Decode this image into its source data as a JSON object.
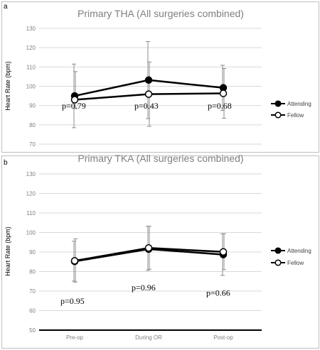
{
  "chart_data": [
    {
      "type": "line",
      "panel": "a",
      "title": "Primary THA (All surgeries combined)",
      "ylabel": "Heart Rate (bpm)",
      "xlabel": "",
      "categories": [
        "Pre-op",
        "During OR",
        "Post-op"
      ],
      "show_x_tick_labels": false,
      "ylim": [
        70,
        130
      ],
      "yticks": [
        70,
        80,
        90,
        100,
        110,
        120,
        130
      ],
      "grid": true,
      "legend_position": "right",
      "series": [
        {
          "name": "Attending",
          "marker": "filled",
          "values": [
            95,
            103.2,
            99.2
          ],
          "err_low": [
            78.5,
            83.2,
            87.5
          ],
          "err_high": [
            111.5,
            123.2,
            110.9
          ]
        },
        {
          "name": "Fellow",
          "marker": "open",
          "values": [
            93,
            95.9,
            96.3
          ],
          "err_low": [
            88.4,
            79.2,
            83.4
          ],
          "err_high": [
            107.6,
            112.6,
            109.2
          ]
        }
      ],
      "annotations": [
        {
          "text": "p=0.79",
          "category": 0,
          "y": 88.4
        },
        {
          "text": "p=0.43",
          "category": 1,
          "y": 88.4
        },
        {
          "text": "p=0.68",
          "category": 2,
          "y": 88.4
        }
      ]
    },
    {
      "type": "line",
      "panel": "b",
      "title": "Primary TKA (All surgeries combined)",
      "ylabel": "Heart Rate (bpm)",
      "xlabel": "",
      "categories": [
        "Pre-op",
        "During OR",
        "Post-op"
      ],
      "show_x_tick_labels": true,
      "ylim": [
        50,
        130
      ],
      "yticks": [
        50,
        60,
        70,
        80,
        90,
        100,
        110,
        120,
        130
      ],
      "grid": true,
      "legend_position": "right",
      "series": [
        {
          "name": "Attending",
          "marker": "filled",
          "values": [
            85.2,
            91.5,
            88.7
          ],
          "err_low": [
            75.1,
            80.6,
            78
          ],
          "err_high": [
            95.6,
            103.2,
            99.3
          ]
        },
        {
          "name": "Fellow",
          "marker": "open",
          "values": [
            85.5,
            92.1,
            90.1
          ],
          "err_low": [
            74.6,
            81.2,
            81
          ],
          "err_high": [
            96.8,
            103.2,
            99.4
          ]
        }
      ],
      "annotations": [
        {
          "text": "p=0.95",
          "category": 0,
          "y": 63.4
        },
        {
          "text": "p=0.96",
          "category": 1,
          "y": 70.3
        },
        {
          "text": "p=0.66",
          "category": 2,
          "y": 67.6
        }
      ]
    }
  ]
}
